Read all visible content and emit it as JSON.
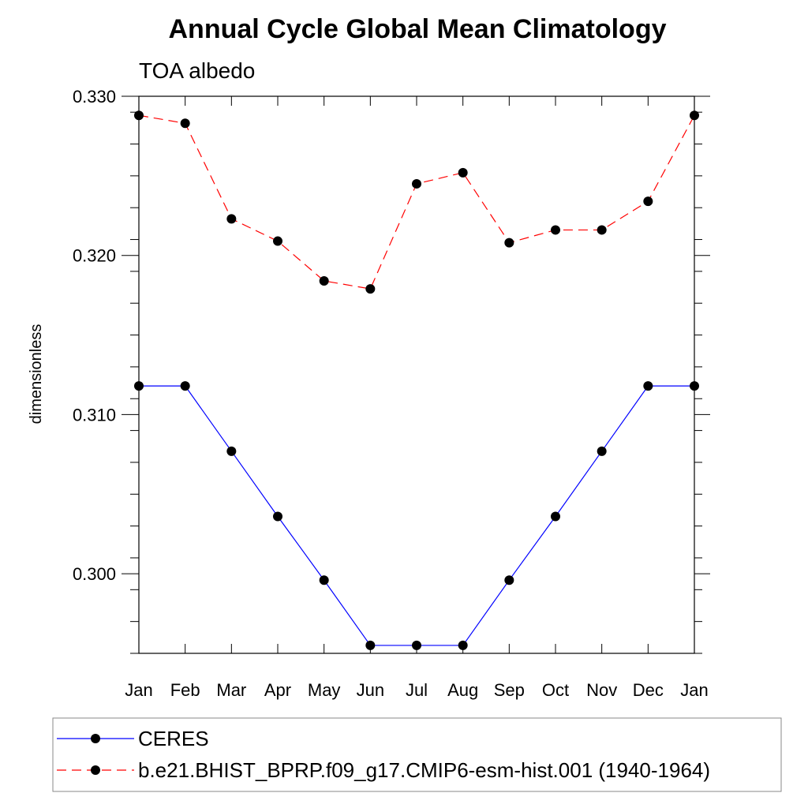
{
  "chart_data": {
    "type": "line",
    "title": "Annual Cycle Global Mean Climatology",
    "subtitle": "TOA albedo",
    "xlabel": "",
    "ylabel": "dimensionless",
    "categories": [
      "Jan",
      "Feb",
      "Mar",
      "Apr",
      "May",
      "Jun",
      "Jul",
      "Aug",
      "Sep",
      "Oct",
      "Nov",
      "Dec",
      "Jan"
    ],
    "ylim": [
      0.295,
      0.33
    ],
    "yticks": [
      0.3,
      0.31,
      0.32,
      0.33
    ],
    "ytick_labels": [
      "0.300",
      "0.310",
      "0.320",
      "0.330"
    ],
    "series": [
      {
        "name": "CERES",
        "color": "#0000ff",
        "style": "solid",
        "marker": "filled-circle",
        "values": [
          0.3118,
          0.3118,
          0.3077,
          0.3036,
          0.2996,
          0.2955,
          0.2955,
          0.2955,
          0.2996,
          0.3036,
          0.3077,
          0.3118,
          0.3118
        ]
      },
      {
        "name": "b.e21.BHIST_BPRP.f09_g17.CMIP6-esm-hist.001 (1940-1964)",
        "color": "#ff0000",
        "style": "dashed",
        "marker": "filled-circle",
        "values": [
          0.3288,
          0.3283,
          0.3223,
          0.3209,
          0.3184,
          0.3179,
          0.3245,
          0.3252,
          0.3208,
          0.3216,
          0.3216,
          0.3234,
          0.3288
        ]
      }
    ],
    "legend_position": "bottom",
    "grid": false
  }
}
